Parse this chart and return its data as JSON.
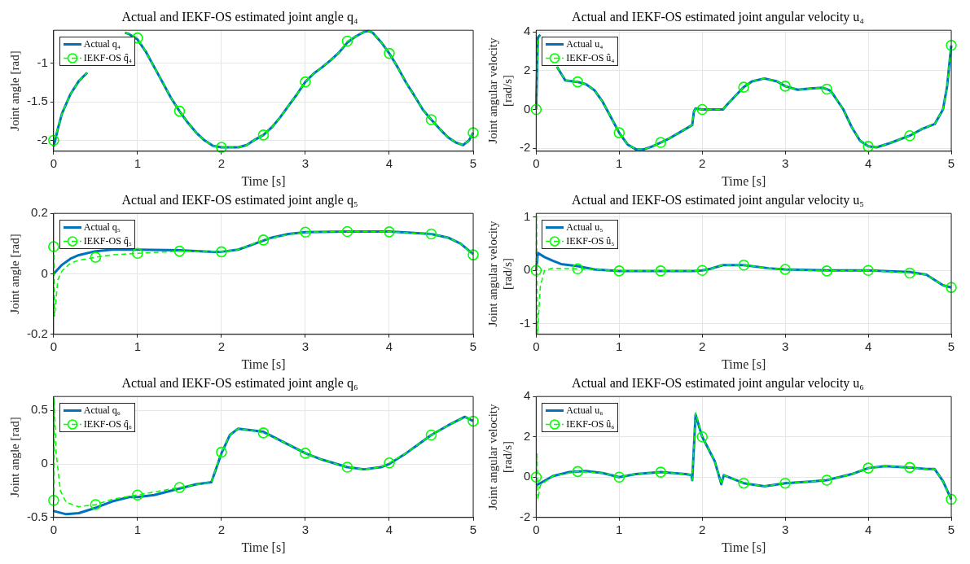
{
  "chart_data": [
    {
      "type": "line",
      "title": "Actual and IEKF-OS estimated joint angle q₄",
      "xlabel": "Time [s]",
      "ylabel": "Joint angle [rad]",
      "xlim": [
        0,
        5
      ],
      "xticks": [
        0,
        1,
        2,
        3,
        4,
        5
      ],
      "ylim": [
        -2.14,
        -0.57
      ],
      "yticks": [
        -2,
        -1.5,
        -1
      ],
      "grid": true,
      "legend": "top left",
      "series": [
        {
          "name": "Actual q₄",
          "color": "#0072bd",
          "line_style": "solid",
          "marker": "none",
          "x": [
            0,
            0.05,
            0.1,
            0.2,
            0.3,
            0.4,
            0.5,
            0.6,
            0.7,
            0.8,
            0.85,
            0.9,
            1,
            1.1,
            1.2,
            1.3,
            1.4,
            1.5,
            1.6,
            1.7,
            1.8,
            1.9,
            2,
            2.1,
            2.2,
            2.3,
            2.4,
            2.5,
            2.6,
            2.7,
            2.8,
            2.9,
            3,
            3.1,
            3.2,
            3.3,
            3.4,
            3.5,
            3.6,
            3.7,
            3.75,
            3.8,
            3.9,
            4,
            4.1,
            4.2,
            4.3,
            4.4,
            4.5,
            4.6,
            4.7,
            4.8,
            4.88,
            4.95,
            5
          ],
          "values": [
            -2.08,
            -1.85,
            -1.65,
            -1.4,
            -1.23,
            -1.12,
            null,
            null,
            null,
            null,
            -0.6,
            -0.62,
            -0.69,
            -0.85,
            -1.05,
            -1.25,
            -1.45,
            -1.62,
            -1.77,
            -1.9,
            -2,
            -2.07,
            -2.09,
            -2.09,
            -2.09,
            -2.06,
            -1.99,
            -1.93,
            -1.83,
            -1.7,
            -1.55,
            -1.4,
            -1.24,
            -1.13,
            -1.05,
            -0.96,
            -0.86,
            -0.73,
            -0.65,
            -0.59,
            -0.58,
            -0.6,
            -0.72,
            -0.87,
            -1.05,
            -1.25,
            -1.42,
            -1.6,
            -1.73,
            -1.85,
            -1.96,
            -2.03,
            -2.06,
            -2,
            -1.9
          ]
        },
        {
          "name": "IEKF-OS q̂₄",
          "type": "scatter",
          "color": "#00ff00",
          "line_style": "dashed",
          "marker": "circle",
          "x": [
            0,
            0.5,
            1,
            1.5,
            2,
            2.5,
            3,
            3.5,
            4,
            4.5,
            5
          ],
          "values": [
            -2,
            null,
            -0.67,
            -1.62,
            -2.09,
            -1.93,
            -1.24,
            -0.71,
            -0.87,
            -1.73,
            -1.9
          ]
        },
        {
          "color": "#00ff00",
          "line_style": "dashed",
          "marker": "none",
          "x": [
            0,
            0.05,
            0.1,
            0.2,
            0.3,
            0.4,
            0.5,
            0.6,
            0.7,
            0.8,
            0.85,
            0.9,
            1,
            1.1,
            1.2,
            1.3,
            1.4,
            1.5,
            1.6,
            1.7,
            1.8,
            1.9,
            2,
            2.1,
            2.2,
            2.3,
            2.4,
            2.5,
            2.6,
            2.7,
            2.8,
            2.9,
            3,
            3.1,
            3.2,
            3.3,
            3.4,
            3.5,
            3.6,
            3.7,
            3.75,
            3.8,
            3.9,
            4,
            4.1,
            4.2,
            4.3,
            4.4,
            4.5,
            4.6,
            4.7,
            4.8,
            4.88,
            4.95,
            5
          ],
          "values": [
            -2,
            -1.85,
            -1.65,
            -1.4,
            -1.23,
            -1.12,
            null,
            null,
            null,
            null,
            -0.6,
            -0.62,
            -0.67,
            -0.85,
            -1.05,
            -1.25,
            -1.45,
            -1.62,
            -1.77,
            -1.9,
            -2,
            -2.07,
            -2.09,
            -2.09,
            -2.09,
            -2.06,
            -1.99,
            -1.93,
            -1.83,
            -1.7,
            -1.55,
            -1.4,
            -1.24,
            -1.13,
            -1.05,
            -0.96,
            -0.86,
            -0.71,
            -0.65,
            -0.59,
            -0.58,
            -0.6,
            -0.72,
            -0.87,
            -1.05,
            -1.25,
            -1.42,
            -1.6,
            -1.73,
            -1.85,
            -1.96,
            -2.03,
            -2.06,
            -2,
            -1.9
          ]
        }
      ]
    },
    {
      "type": "line",
      "title": "Actual and IEKF-OS estimated joint angular velocity u₄",
      "xlabel": "Time [s]",
      "ylabel": "Joint angular velocity [rad/s]",
      "xlim": [
        0,
        5
      ],
      "xticks": [
        0,
        1,
        2,
        3,
        4,
        5
      ],
      "ylim": [
        -2.15,
        4.08
      ],
      "yticks": [
        -2,
        0,
        2,
        4
      ],
      "grid": true,
      "legend": "top left",
      "series": [
        {
          "name": "Actual u₄",
          "color": "#0072bd",
          "line_style": "solid",
          "marker": "none",
          "x": [
            0,
            0.02,
            0.05,
            0.08,
            0.15,
            0.25,
            0.35,
            0.5,
            0.6,
            0.7,
            0.8,
            0.9,
            1,
            1.1,
            1.2,
            1.3,
            1.4,
            1.5,
            1.6,
            1.7,
            1.8,
            1.88,
            1.9,
            1.92,
            2,
            2.25,
            2.3,
            2.4,
            2.5,
            2.6,
            2.75,
            2.9,
            3,
            3.15,
            3.3,
            3.45,
            3.5,
            3.55,
            3.7,
            3.8,
            3.9,
            4,
            4.1,
            4.25,
            4.5,
            4.65,
            4.8,
            4.9,
            4.95,
            5
          ],
          "values": [
            0,
            3.7,
            3.85,
            null,
            null,
            2.2,
            1.5,
            1.42,
            1.3,
            1,
            0.4,
            -0.4,
            -1.2,
            -1.8,
            -2.05,
            -2.05,
            -1.9,
            -1.7,
            -1.5,
            -1.25,
            -1,
            -0.8,
            -0.1,
            0.05,
            0,
            0,
            0.25,
            0.7,
            1.15,
            1.45,
            1.6,
            1.45,
            1.2,
            1.02,
            1.08,
            1.12,
            1.05,
            0.95,
            0,
            -0.9,
            -1.6,
            -1.9,
            -1.95,
            -1.75,
            -1.35,
            -1,
            -0.75,
            0,
            1.2,
            3.3
          ]
        },
        {
          "name": "IEKF-OS û₄",
          "type": "scatter",
          "color": "#00ff00",
          "line_style": "dashed",
          "marker": "circle",
          "x": [
            0,
            0.5,
            1,
            1.5,
            2,
            2.5,
            3,
            3.5,
            4,
            4.5,
            5
          ],
          "values": [
            0,
            1.42,
            -1.2,
            -1.7,
            0,
            1.15,
            1.2,
            1.05,
            -1.9,
            -1.35,
            3.3
          ]
        },
        {
          "color": "#00ff00",
          "line_style": "dashed",
          "marker": "none",
          "x": [
            0,
            0.02,
            0.05,
            0.08,
            0.15,
            0.25,
            0.35,
            0.5,
            0.6,
            0.7,
            0.8,
            0.9,
            1,
            1.1,
            1.2,
            1.3,
            1.4,
            1.5,
            1.6,
            1.7,
            1.8,
            1.88,
            1.9,
            1.92,
            2,
            2.25,
            2.3,
            2.4,
            2.5,
            2.6,
            2.75,
            2.9,
            3,
            3.15,
            3.3,
            3.45,
            3.5,
            3.55,
            3.7,
            3.8,
            3.9,
            4,
            4.1,
            4.25,
            4.5,
            4.65,
            4.8,
            4.9,
            4.95,
            5
          ],
          "values": [
            0,
            3.5,
            3.8,
            null,
            null,
            2.2,
            1.5,
            1.42,
            1.3,
            1,
            0.4,
            -0.4,
            -1.2,
            -1.8,
            -2.05,
            -2.05,
            -1.9,
            -1.7,
            -1.5,
            -1.25,
            -1,
            -0.8,
            -0.1,
            0.05,
            0,
            0,
            0.25,
            0.7,
            1.15,
            1.45,
            1.6,
            1.45,
            1.2,
            1.02,
            1.08,
            1.12,
            1.05,
            0.95,
            0,
            -0.9,
            -1.6,
            -1.9,
            -1.95,
            -1.75,
            -1.35,
            -1,
            -0.75,
            0,
            1.2,
            3.3
          ]
        }
      ]
    },
    {
      "type": "line",
      "title": "Actual and IEKF-OS estimated joint angle q₅",
      "xlabel": "Time [s]",
      "ylabel": "Joint angle [rad]",
      "xlim": [
        0,
        5
      ],
      "xticks": [
        0,
        1,
        2,
        3,
        4,
        5
      ],
      "ylim": [
        -0.2,
        0.2
      ],
      "yticks": [
        -0.2,
        0,
        0.2
      ],
      "grid": true,
      "legend": "top left",
      "series": [
        {
          "name": "Actual q₅",
          "color": "#0072bd",
          "line_style": "solid",
          "marker": "none",
          "x": [
            0,
            0.1,
            0.2,
            0.3,
            0.5,
            0.7,
            1,
            1.5,
            1.9,
            2,
            2.2,
            2.4,
            2.6,
            2.8,
            3,
            3.5,
            4,
            4.5,
            4.7,
            4.85,
            5
          ],
          "values": [
            0,
            0.03,
            0.05,
            0.062,
            0.075,
            0.08,
            0.08,
            0.078,
            0.073,
            0.073,
            0.08,
            0.1,
            0.12,
            0.132,
            0.138,
            0.14,
            0.14,
            0.132,
            0.12,
            0.1,
            0.065
          ]
        },
        {
          "name": "IEKF-OS q̂₅",
          "type": "scatter",
          "color": "#00ff00",
          "line_style": "dashed",
          "marker": "circle",
          "x": [
            0,
            0.5,
            1,
            1.5,
            2,
            2.5,
            3,
            3.5,
            4,
            4.5,
            5
          ],
          "values": [
            0.09,
            0.055,
            0.068,
            0.075,
            0.073,
            0.112,
            0.138,
            0.14,
            0.139,
            0.132,
            0.063
          ]
        },
        {
          "color": "#00ff00",
          "line_style": "dashed",
          "marker": "none",
          "x": [
            0,
            0.01,
            0.05,
            0.1,
            0.2,
            0.3,
            0.5,
            0.7,
            1,
            1.5,
            2,
            2.2,
            2.5,
            2.8,
            3,
            3.5,
            4,
            4.5,
            4.7,
            4.85,
            5
          ],
          "values": [
            0.09,
            -0.14,
            -0.02,
            0.01,
            0.035,
            0.045,
            0.055,
            0.063,
            0.068,
            0.075,
            0.073,
            0.08,
            0.112,
            0.13,
            0.138,
            0.14,
            0.139,
            0.132,
            0.12,
            0.1,
            0.063
          ]
        }
      ]
    },
    {
      "type": "line",
      "title": "Actual and IEKF-OS estimated joint angular velocity u₅",
      "xlabel": "Time [s]",
      "ylabel": "Joint angular velocity [rad/s]",
      "xlim": [
        0,
        5
      ],
      "xticks": [
        0,
        1,
        2,
        3,
        4,
        5
      ],
      "ylim": [
        -1.2,
        1.07
      ],
      "yticks": [
        -1,
        0,
        1
      ],
      "grid": true,
      "legend": "top left",
      "series": [
        {
          "name": "Actual u₅",
          "color": "#0072bd",
          "line_style": "solid",
          "marker": "none",
          "x": [
            0,
            0.02,
            0.1,
            0.2,
            0.3,
            0.5,
            0.7,
            1,
            1.5,
            1.9,
            2,
            2.1,
            2.25,
            2.5,
            2.8,
            3,
            3.5,
            4,
            4.5,
            4.7,
            4.8,
            4.9,
            5
          ],
          "values": [
            0,
            0.33,
            0.25,
            0.18,
            0.12,
            0.08,
            0.02,
            -0.01,
            -0.01,
            -0.01,
            0,
            0.03,
            0.1,
            0.1,
            0.04,
            0.02,
            0,
            0,
            -0.03,
            -0.08,
            -0.18,
            -0.28,
            -0.32
          ]
        },
        {
          "name": "IEKF-OS û₅",
          "type": "scatter",
          "color": "#00ff00",
          "line_style": "dashed",
          "marker": "circle",
          "x": [
            0,
            0.5,
            1,
            1.5,
            2,
            2.5,
            3,
            3.5,
            4,
            4.5,
            5
          ],
          "values": [
            0,
            0.03,
            -0.01,
            -0.01,
            0,
            0.1,
            0.02,
            -0.01,
            0,
            -0.05,
            -0.32
          ]
        },
        {
          "color": "#00ff00",
          "line_style": "dashed",
          "marker": "none",
          "x": [
            0,
            0.005,
            0.015,
            0.05,
            0.1,
            0.2,
            0.5,
            0.7,
            1,
            1.5,
            1.9,
            2,
            2.1,
            2.25,
            2.5,
            2.8,
            3,
            3.5,
            4,
            4.5,
            4.7,
            4.8,
            4.9,
            5
          ],
          "values": [
            0,
            1.05,
            -1.2,
            -0.3,
            0,
            0.04,
            0.03,
            0.02,
            -0.01,
            -0.01,
            -0.01,
            0,
            0.03,
            0.1,
            0.1,
            0.04,
            0.02,
            -0.01,
            0,
            -0.05,
            -0.08,
            -0.18,
            -0.28,
            -0.32
          ]
        }
      ]
    },
    {
      "type": "line",
      "title": "Actual and IEKF-OS estimated joint angle q₆",
      "xlabel": "Time [s]",
      "ylabel": "Joint angle [rad]",
      "xlim": [
        0,
        5
      ],
      "xticks": [
        0,
        1,
        2,
        3,
        4,
        5
      ],
      "ylim": [
        -0.5,
        0.63
      ],
      "yticks": [
        -0.5,
        0,
        0.5
      ],
      "grid": true,
      "legend": "top left",
      "series": [
        {
          "name": "Actual q₆",
          "color": "#0072bd",
          "line_style": "solid",
          "marker": "none",
          "x": [
            0,
            0.15,
            0.3,
            0.5,
            0.7,
            0.9,
            1,
            1.2,
            1.5,
            1.7,
            1.88,
            2,
            2.1,
            2.2,
            2.3,
            2.5,
            2.7,
            3,
            3.2,
            3.5,
            3.7,
            3.9,
            4,
            4.2,
            4.5,
            4.7,
            4.9,
            5
          ],
          "values": [
            -0.44,
            -0.47,
            -0.46,
            -0.41,
            -0.35,
            -0.31,
            -0.31,
            -0.29,
            -0.23,
            -0.19,
            -0.17,
            0.1,
            0.27,
            0.33,
            0.32,
            0.3,
            0.22,
            0.1,
            0.04,
            -0.03,
            -0.05,
            -0.03,
            0,
            0.1,
            0.27,
            0.36,
            0.44,
            0.4
          ]
        },
        {
          "name": "IEKF-OS q̂₆",
          "type": "scatter",
          "color": "#00ff00",
          "line_style": "dashed",
          "marker": "circle",
          "x": [
            0,
            0.5,
            1,
            1.5,
            2,
            2.5,
            3,
            3.5,
            4,
            4.5,
            5
          ],
          "values": [
            -0.34,
            -0.38,
            -0.29,
            -0.22,
            0.11,
            0.29,
            0.1,
            -0.03,
            0.01,
            0.27,
            0.4
          ]
        },
        {
          "color": "#00ff00",
          "line_style": "dashed",
          "marker": "none",
          "x": [
            0,
            0.005,
            0.03,
            0.08,
            0.15,
            0.3,
            0.5,
            0.7,
            1,
            1.5,
            1.88,
            2,
            2.1,
            2.2,
            2.3,
            2.5,
            2.7,
            3,
            3.2,
            3.5,
            3.7,
            3.9,
            4,
            4.2,
            4.5,
            4.7,
            4.9,
            5
          ],
          "values": [
            -0.34,
            0.62,
            0.1,
            -0.25,
            -0.36,
            -0.4,
            -0.38,
            -0.33,
            -0.29,
            -0.22,
            -0.17,
            0.11,
            0.27,
            0.33,
            0.32,
            0.29,
            0.22,
            0.1,
            0.04,
            -0.03,
            -0.05,
            -0.03,
            0.01,
            0.1,
            0.27,
            0.36,
            0.44,
            0.4
          ]
        }
      ]
    },
    {
      "type": "line",
      "title": "Actual and IEKF-OS estimated joint angular velocity u₆",
      "xlabel": "Time [s]",
      "ylabel": "Joint angular velocity [rad/s]",
      "xlim": [
        0,
        5
      ],
      "xticks": [
        0,
        1,
        2,
        3,
        4,
        5
      ],
      "ylim": [
        -2,
        4
      ],
      "yticks": [
        -2,
        0,
        2,
        4
      ],
      "grid": true,
      "legend": "top left",
      "series": [
        {
          "name": "Actual u₆",
          "color": "#0072bd",
          "line_style": "solid",
          "marker": "none",
          "x": [
            0,
            0.05,
            0.2,
            0.4,
            0.6,
            0.8,
            1,
            1.2,
            1.5,
            1.8,
            1.87,
            1.88,
            1.92,
            2,
            2.15,
            2.23,
            2.26,
            2.5,
            2.75,
            3,
            3.3,
            3.5,
            3.8,
            4,
            4.2,
            4.5,
            4.7,
            4.8,
            4.9,
            5
          ],
          "values": [
            -0.4,
            -0.3,
            0.05,
            0.25,
            0.3,
            0.2,
            0,
            0.15,
            0.25,
            0.15,
            0.1,
            -0.15,
            3.1,
            2,
            0.8,
            -0.35,
            0.1,
            -0.3,
            -0.45,
            -0.3,
            -0.22,
            -0.15,
            0.15,
            0.45,
            0.55,
            0.48,
            0.4,
            0.4,
            -0.2,
            -1.1
          ]
        },
        {
          "name": "IEKF-OS û₆",
          "type": "scatter",
          "color": "#00ff00",
          "line_style": "dashed",
          "marker": "circle",
          "x": [
            0,
            0.5,
            1,
            1.5,
            2,
            2.5,
            3,
            3.5,
            4,
            4.5,
            5
          ],
          "values": [
            0,
            0.28,
            0,
            0.25,
            2,
            -0.3,
            -0.3,
            -0.15,
            0.45,
            0.48,
            -1.1
          ]
        },
        {
          "color": "#00ff00",
          "line_style": "dashed",
          "marker": "none",
          "x": [
            0,
            0.01,
            0.02,
            0.05,
            0.2,
            0.5,
            0.8,
            1,
            1.2,
            1.5,
            1.8,
            1.87,
            1.88,
            1.92,
            2,
            2.15,
            2.23,
            2.26,
            2.5,
            2.75,
            3,
            3.3,
            3.5,
            3.8,
            4,
            4.2,
            4.5,
            4.7,
            4.8,
            4.9,
            5
          ],
          "values": [
            0,
            1.2,
            -1.1,
            -0.4,
            0.05,
            0.28,
            0.2,
            0,
            0.15,
            0.25,
            0.15,
            0.1,
            -0.15,
            3.2,
            2,
            0.8,
            -0.35,
            0.1,
            -0.3,
            -0.45,
            -0.3,
            -0.22,
            -0.15,
            0.15,
            0.45,
            0.55,
            0.48,
            0.4,
            0.4,
            -0.2,
            -1.1
          ]
        }
      ]
    }
  ]
}
